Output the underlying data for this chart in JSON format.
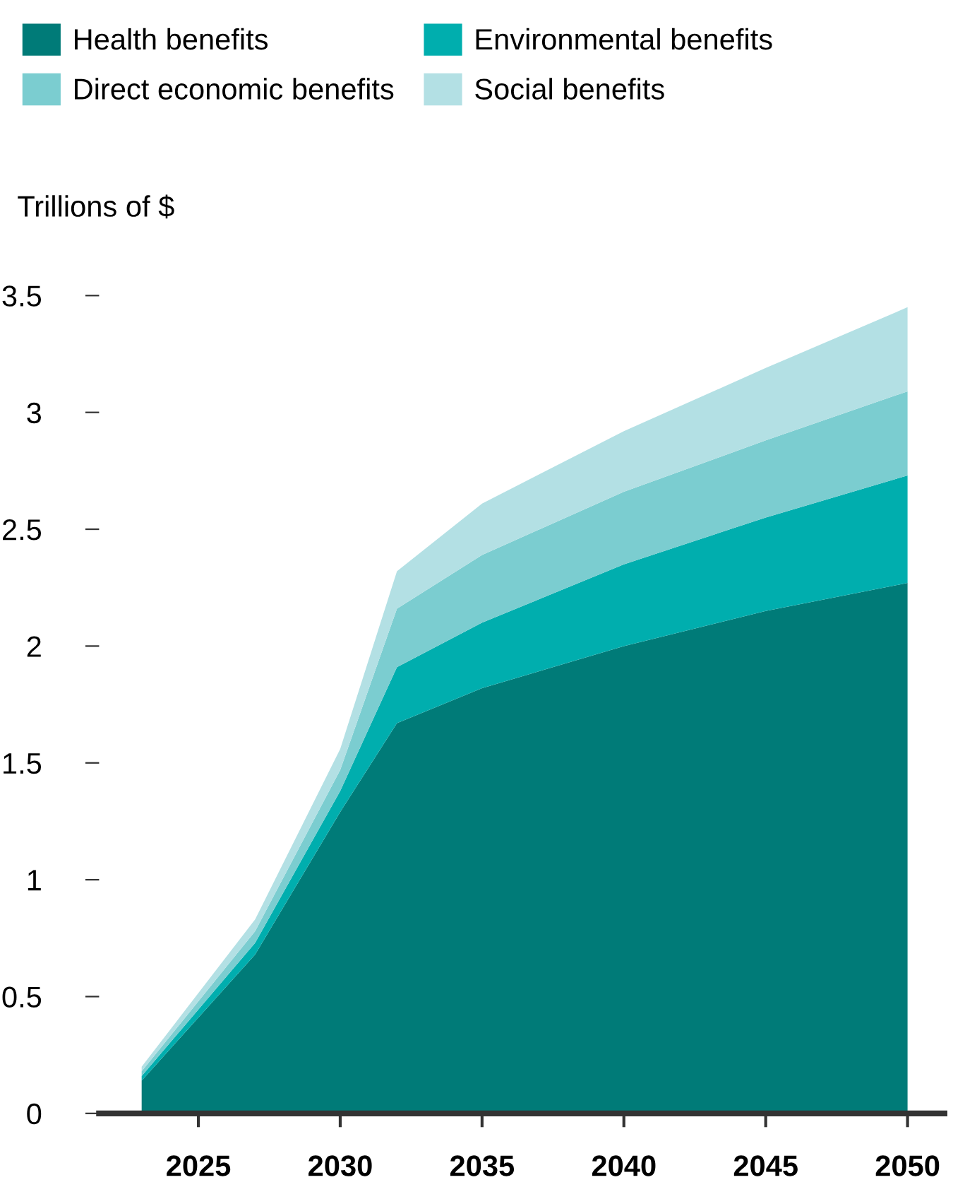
{
  "chart_data": {
    "type": "area",
    "stacked": true,
    "ylabel": "Trillions of $",
    "x": [
      2023,
      2027,
      2030,
      2032,
      2035,
      2040,
      2045,
      2050
    ],
    "series": [
      {
        "name": "Health benefits",
        "color": "#007b78",
        "values": [
          0.14,
          0.68,
          1.29,
          1.67,
          1.82,
          2.0,
          2.15,
          2.27
        ]
      },
      {
        "name": "Environmental benefits",
        "color": "#00aeae",
        "values": [
          0.02,
          0.05,
          0.09,
          0.24,
          0.28,
          0.35,
          0.4,
          0.46
        ]
      },
      {
        "name": "Direct economic benefits",
        "color": "#7bcdd0",
        "values": [
          0.02,
          0.05,
          0.09,
          0.25,
          0.29,
          0.31,
          0.33,
          0.36
        ]
      },
      {
        "name": "Social benefits",
        "color": "#b3e0e4",
        "values": [
          0.02,
          0.05,
          0.09,
          0.16,
          0.22,
          0.26,
          0.31,
          0.36
        ]
      }
    ],
    "xlim": [
      2021.5,
      2051.3
    ],
    "ylim": [
      0,
      3.5
    ],
    "xticks": [
      2025,
      2030,
      2035,
      2040,
      2045,
      2050
    ],
    "yticks": [
      0,
      0.5,
      1,
      1.5,
      2,
      2.5,
      3,
      3.5
    ],
    "grid": false,
    "legend": "top left"
  }
}
